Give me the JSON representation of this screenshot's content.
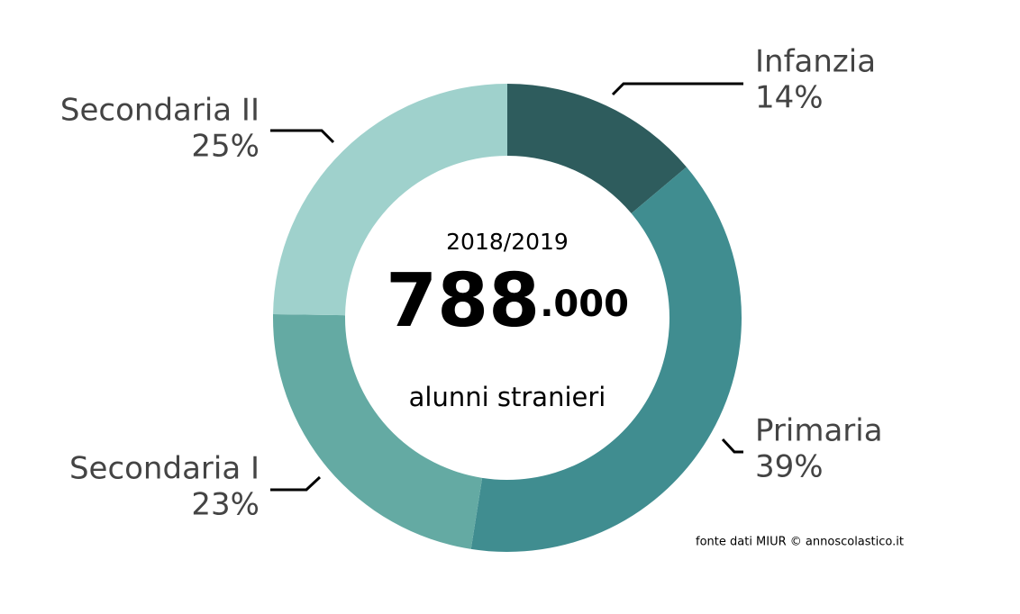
{
  "chart_data": {
    "type": "pie",
    "categories": [
      "Infanzia",
      "Primaria",
      "Secondaria I",
      "Secondaria II"
    ],
    "values": [
      14,
      39,
      23,
      25
    ],
    "value_labels": [
      "14%",
      "39%",
      "23%",
      "25%"
    ],
    "colors": [
      "#2e5c5d",
      "#408d90",
      "#64aaa3",
      "#9fd1cc"
    ],
    "center_title": "2018/2019",
    "center_value": [
      "788",
      ".000"
    ],
    "center_label": "alunni stranieri",
    "source": "fonte dati MIUR © annoscolastico.it"
  }
}
